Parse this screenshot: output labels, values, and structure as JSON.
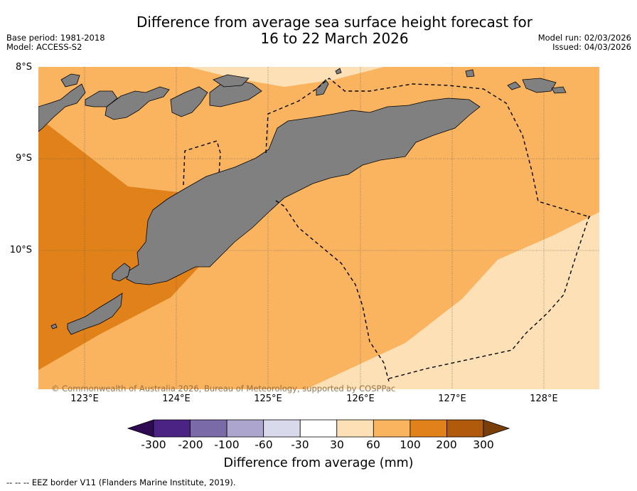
{
  "title_line1": "Difference from average sea surface height forecast for",
  "title_line2": "16 to 22 March 2026",
  "base_period": "Base period: 1981-2018",
  "model": "Model: ACCESS-S2",
  "model_run": "Model run: 02/03/2026",
  "issued": "Issued: 04/03/2026",
  "latitude_labels": [
    "8°S",
    "9°S",
    "10°S"
  ],
  "longitude_labels": [
    "123°E",
    "124°E",
    "125°E",
    "126°E",
    "127°E",
    "128°E"
  ],
  "copyright": "© Commonwealth of Australia 2026, Bureau of Meteorology, supported by COSPPac",
  "colorbar": {
    "ticks": [
      "-300",
      "-200",
      "-100",
      "-60",
      "-30",
      "30",
      "60",
      "100",
      "200",
      "300"
    ],
    "colors": [
      "#4a2384",
      "#7b6aa8",
      "#aca6cf",
      "#d8d9ea",
      "#ffffff",
      "#fde0b6",
      "#fab460",
      "#e0811a",
      "#b05a0c"
    ],
    "low_extend_color": "#2d0a52",
    "high_extend_color": "#7a3e08",
    "label": "Difference from average (mm)"
  },
  "region_colors": {
    "band_30_60": "#fde0b6",
    "band_60_100": "#fab460",
    "band_100_200": "#e0811a",
    "land": "#808080"
  },
  "footnote": "--  --  -- EEZ border V11 (Flanders Marine Institute, 2019)."
}
